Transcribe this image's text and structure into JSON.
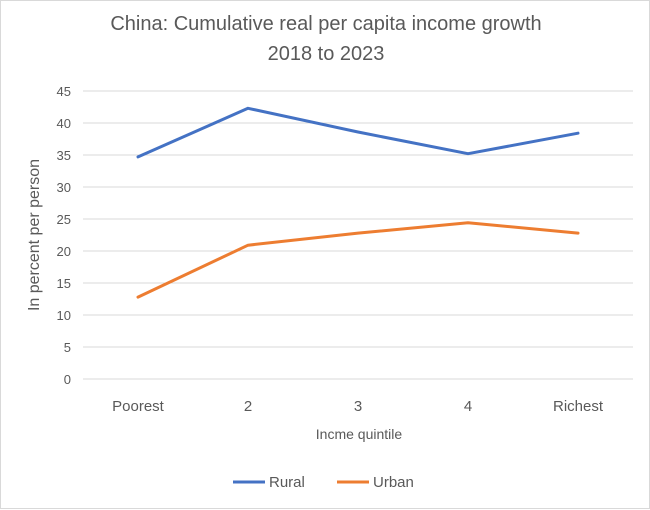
{
  "chart_data": {
    "type": "line",
    "title_line1": "China: Cumulative real per capita income growth",
    "title_line2": "2018 to 2023",
    "xlabel": "Incme quintile",
    "ylabel": "In percent per person",
    "categories": [
      "Poorest",
      "2",
      "3",
      "4",
      "Richest"
    ],
    "ylim": [
      0,
      45
    ],
    "yticks": [
      0,
      5,
      10,
      15,
      20,
      25,
      30,
      35,
      40,
      45
    ],
    "grid": true,
    "legend_position": "bottom",
    "series": [
      {
        "name": "Rural",
        "color": "#4472C4",
        "values": [
          34.7,
          42.3,
          38.6,
          35.2,
          38.4
        ]
      },
      {
        "name": "Urban",
        "color": "#ED7D31",
        "values": [
          12.8,
          20.9,
          22.8,
          24.4,
          22.8
        ]
      }
    ]
  }
}
